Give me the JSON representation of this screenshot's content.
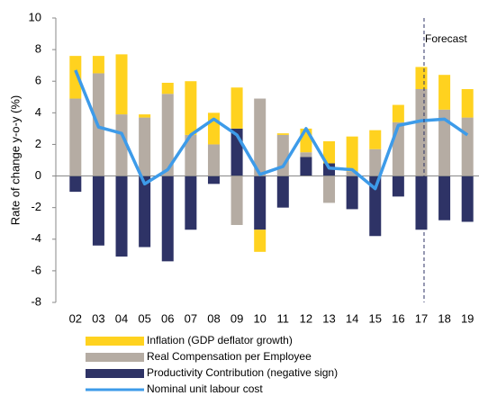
{
  "chart_data": {
    "type": "bar",
    "y_label": "Rate of change y-o-y (%)",
    "annotation": "Forecast",
    "categories": [
      "02",
      "03",
      "04",
      "05",
      "06",
      "07",
      "08",
      "09",
      "10",
      "11",
      "12",
      "13",
      "14",
      "15",
      "16",
      "17",
      "18",
      "19"
    ],
    "series": [
      {
        "name": "Inflation (GDP deflator growth)",
        "color": "#ffd21f",
        "values": [
          2.7,
          1.1,
          3.8,
          0.2,
          0.7,
          3.4,
          2.0,
          2.6,
          -1.4,
          0.1,
          1.5,
          1.4,
          2.2,
          1.2,
          1.1,
          1.4,
          2.2,
          1.8
        ]
      },
      {
        "name": "Real Compensation per Employee",
        "color": "#b5aca3",
        "values": [
          4.9,
          6.5,
          3.9,
          3.7,
          5.2,
          2.6,
          2.0,
          -3.1,
          4.9,
          2.6,
          0.3,
          -1.7,
          0.3,
          1.7,
          3.4,
          5.5,
          4.2,
          3.7
        ]
      },
      {
        "name": "Productivity Contribution (negative sign)",
        "color": "#2e3366",
        "values": [
          -1.0,
          -4.4,
          -5.1,
          -4.5,
          -5.4,
          -3.4,
          -0.5,
          3.0,
          -3.4,
          -2.0,
          1.2,
          0.8,
          -2.1,
          -3.8,
          -1.3,
          -3.4,
          -2.8,
          -2.9
        ]
      },
      {
        "name": "Nominal unit labour cost",
        "color": "#3d9be9",
        "type": "line",
        "values": [
          6.7,
          3.1,
          2.7,
          -0.5,
          0.4,
          2.6,
          3.6,
          2.6,
          0.1,
          0.6,
          3.0,
          0.5,
          0.4,
          -0.8,
          3.2,
          3.5,
          3.6,
          2.6
        ]
      }
    ],
    "ylim": [
      -8,
      10
    ],
    "yticks": [
      -8,
      -6,
      -4,
      -2,
      0,
      2,
      4,
      6,
      8,
      10
    ]
  }
}
